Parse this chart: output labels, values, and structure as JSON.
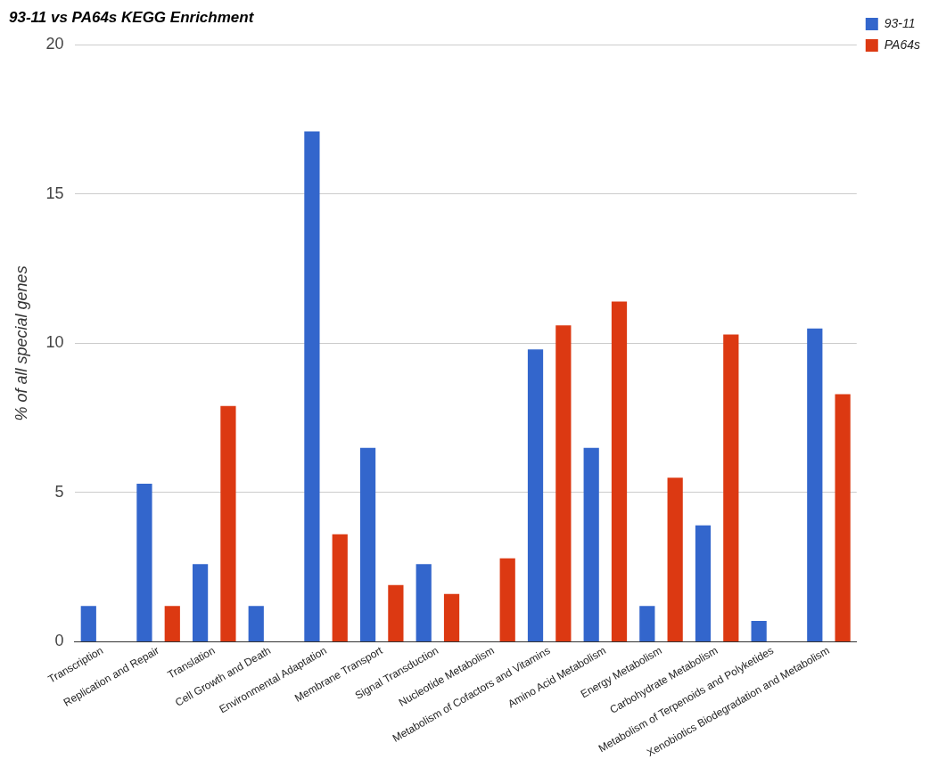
{
  "chart_data": {
    "type": "bar",
    "title": "93-11 vs PA64s KEGG Enrichment",
    "ylabel": "% of all special genes",
    "categories": [
      "Transcription",
      "Replication and Repair",
      "Translation",
      "Cell Growth and Death",
      "Environmental Adaptation",
      "Membrane Transport",
      "Signal Transduction",
      "Nucleotide Metabolism",
      "Metabolism of Cofactors and Vitamins",
      "Amino Acid Metabolism",
      "Energy Metabolism",
      "Carbohydrate Metabolism",
      "Metabolism of Terpenoids and Polyketides",
      "Xenobiotics Biodegradation and Metabolism"
    ],
    "series": [
      {
        "name": "93-11",
        "color": "#3366cc",
        "values": [
          1.2,
          5.3,
          2.6,
          1.2,
          17.1,
          6.5,
          2.6,
          0,
          9.8,
          6.5,
          1.2,
          3.9,
          0.7,
          10.5
        ]
      },
      {
        "name": "PA64s",
        "color": "#dc3912",
        "values": [
          0,
          1.2,
          7.9,
          0,
          3.6,
          1.9,
          1.6,
          2.8,
          10.6,
          11.4,
          5.5,
          10.3,
          0,
          8.3
        ]
      }
    ],
    "ylim": [
      0,
      20
    ],
    "yticks": [
      0,
      5,
      10,
      15,
      20
    ],
    "grid": "y",
    "legend": "top right"
  }
}
